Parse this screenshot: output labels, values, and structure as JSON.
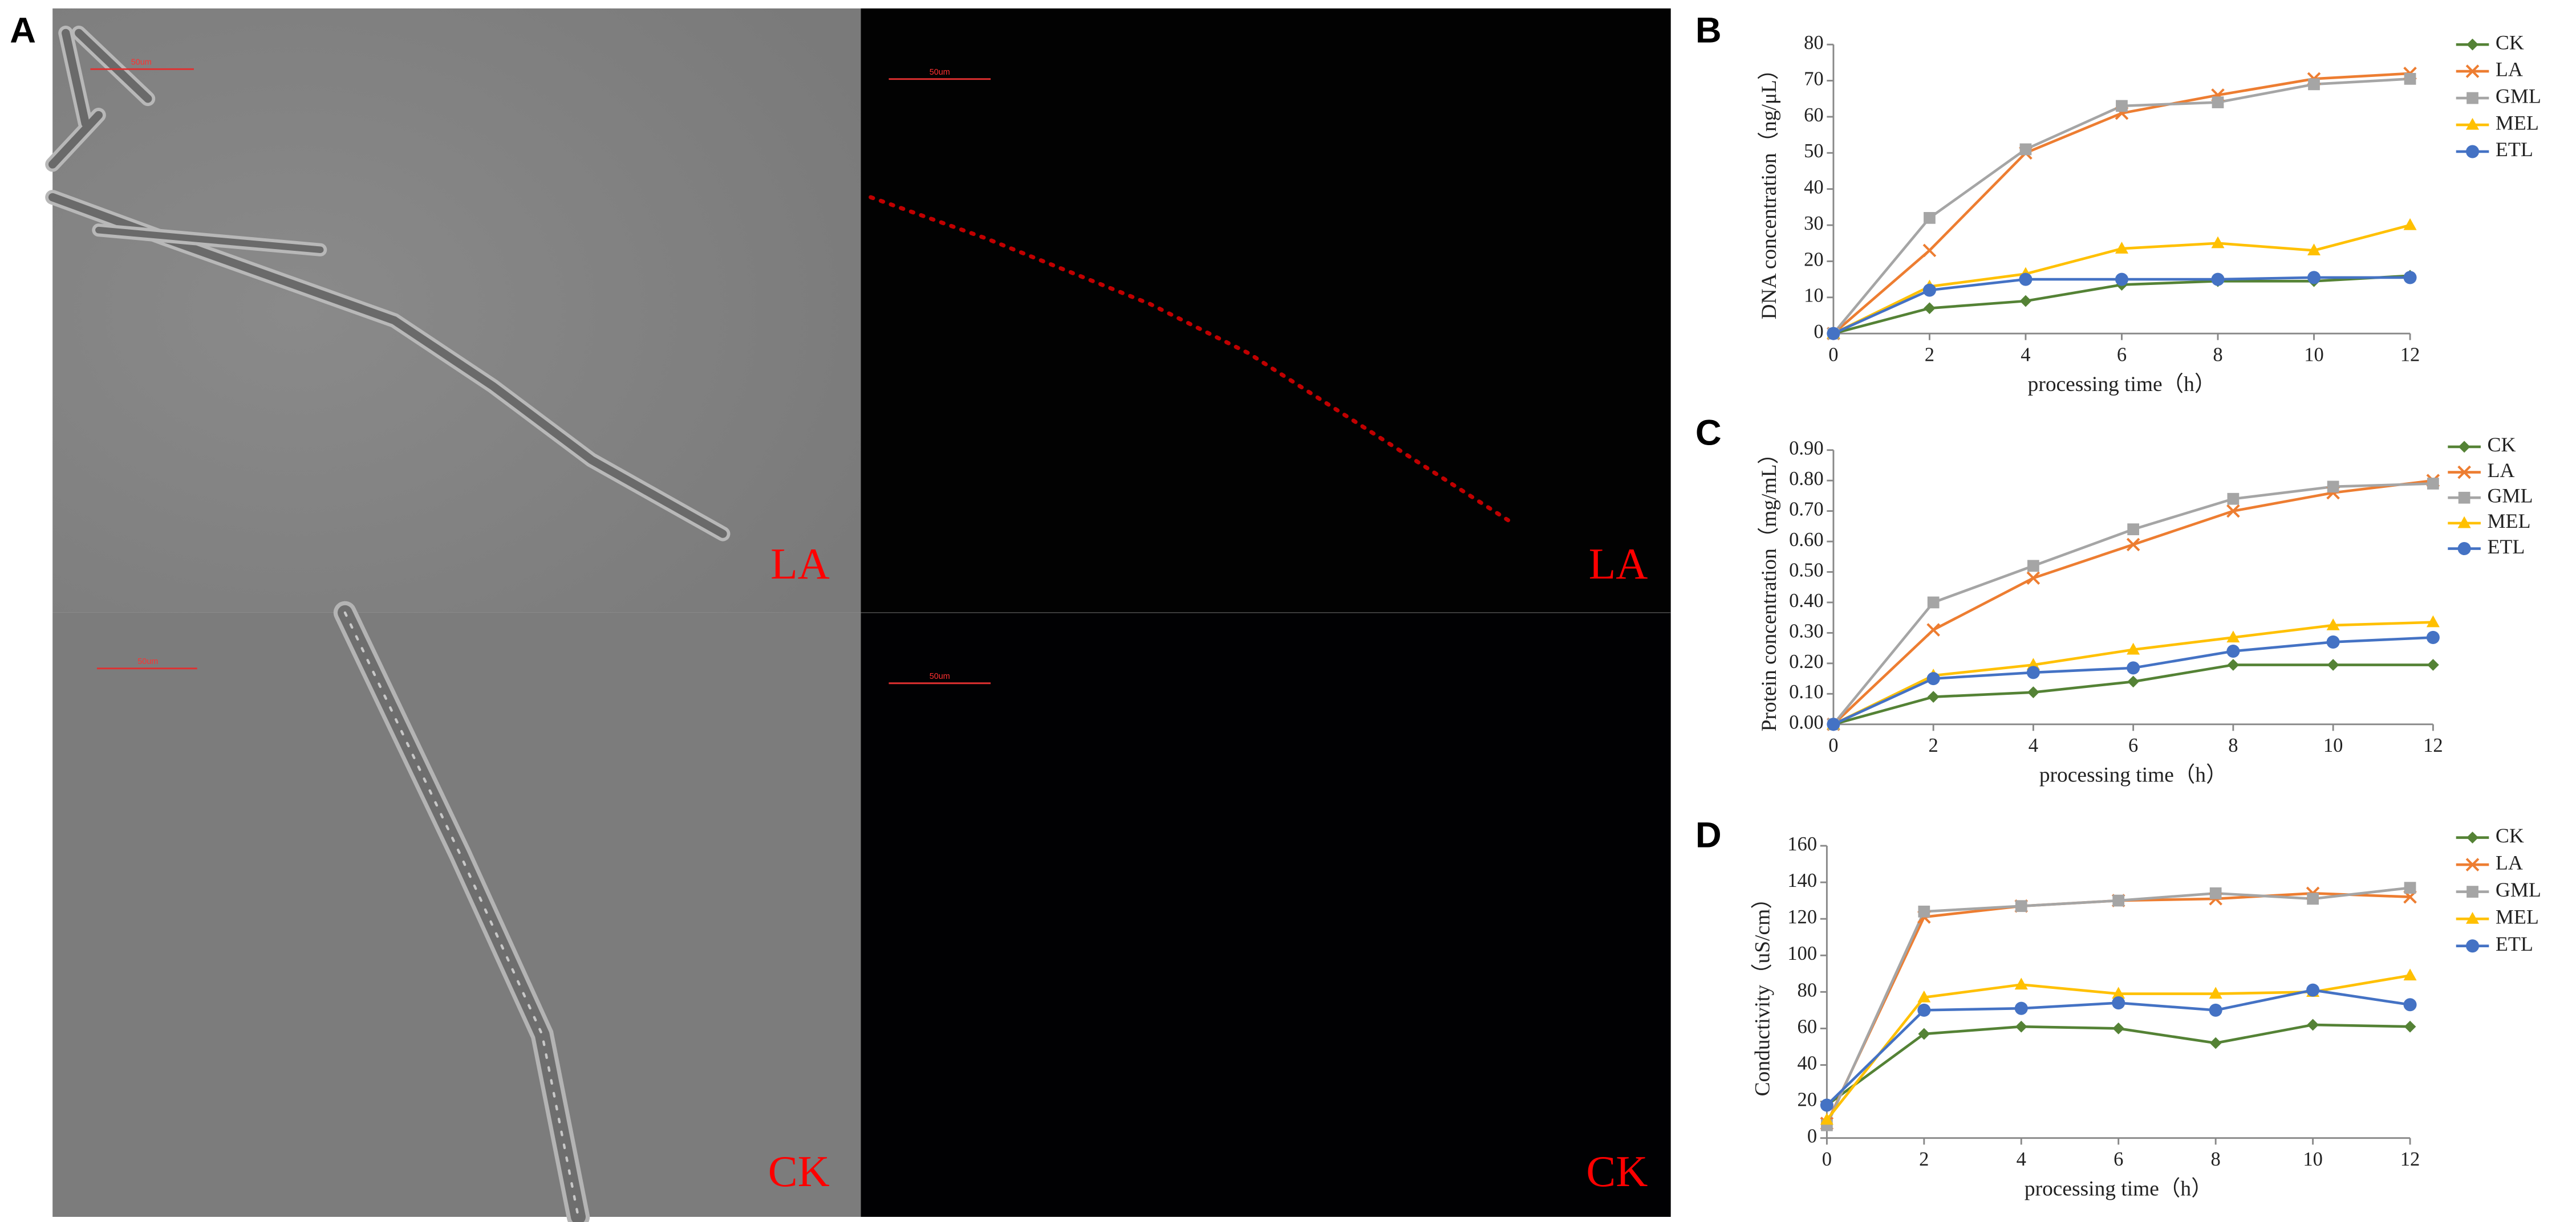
{
  "panel_labels": [
    "A",
    "B",
    "C",
    "D"
  ],
  "images": [
    {
      "label": "LA",
      "scale_label": "50um"
    },
    {
      "label": "LA",
      "scale_label": "50um"
    },
    {
      "label": "CK",
      "scale_label": "50um"
    },
    {
      "label": "CK",
      "scale_label": "50um"
    }
  ],
  "chart_data": [
    {
      "type": "line",
      "x_label": "processing time（h）",
      "y_label": "DNA concentration（ng/μL）",
      "x": [
        0,
        2,
        4,
        6,
        8,
        10,
        12
      ],
      "xlim": [
        0,
        12
      ],
      "xticks": [
        0,
        2,
        4,
        6,
        8,
        10,
        12
      ],
      "ylim": [
        0,
        80
      ],
      "yticks": [
        0,
        10,
        20,
        30,
        40,
        50,
        60,
        70,
        80
      ],
      "grid": false,
      "legend": "right",
      "series": [
        {
          "name": "CK",
          "color": "#548235",
          "marker": "diamond",
          "values": [
            0,
            7,
            9,
            13.5,
            14.5,
            14.5,
            16
          ]
        },
        {
          "name": "LA",
          "color": "#ed7d31",
          "marker": "x",
          "values": [
            0,
            23,
            50,
            61,
            66,
            70.5,
            72
          ]
        },
        {
          "name": "GML",
          "color": "#a5a5a5",
          "marker": "square",
          "values": [
            0,
            32,
            51,
            63,
            64,
            69,
            70.5
          ]
        },
        {
          "name": "MEL",
          "color": "#ffc000",
          "marker": "triangle",
          "values": [
            0,
            13,
            16.5,
            23.5,
            25,
            23,
            30
          ]
        },
        {
          "name": "ETL",
          "color": "#4472c4",
          "marker": "circle",
          "values": [
            0,
            12,
            15,
            15,
            15,
            15.5,
            15.5
          ]
        }
      ]
    },
    {
      "type": "line",
      "x_label": "processing time（h）",
      "y_label": "Protein concentration（mg/mL）",
      "x": [
        0,
        2,
        4,
        6,
        8,
        10,
        12
      ],
      "xlim": [
        0,
        12
      ],
      "xticks": [
        0,
        2,
        4,
        6,
        8,
        10,
        12
      ],
      "ylim": [
        0,
        0.9
      ],
      "yticks": [
        {
          "value": 0,
          "label": "0.00"
        },
        {
          "value": 0.1,
          "label": "0.10"
        },
        {
          "value": 0.2,
          "label": "0.20"
        },
        {
          "value": 0.3,
          "label": "0.30"
        },
        {
          "value": 0.4,
          "label": "0.40"
        },
        {
          "value": 0.5,
          "label": "0.50"
        },
        {
          "value": 0.6,
          "label": "0.60"
        },
        {
          "value": 0.7,
          "label": "0.70"
        },
        {
          "value": 0.8,
          "label": "0.80"
        },
        {
          "value": 0.9,
          "label": "0.90"
        }
      ],
      "grid": false,
      "legend": "right",
      "series": [
        {
          "name": "CK",
          "color": "#548235",
          "marker": "diamond",
          "values": [
            0,
            0.09,
            0.105,
            0.14,
            0.195,
            0.195,
            0.195
          ]
        },
        {
          "name": "LA",
          "color": "#ed7d31",
          "marker": "x",
          "values": [
            0,
            0.31,
            0.48,
            0.59,
            0.7,
            0.76,
            0.8
          ]
        },
        {
          "name": "GML",
          "color": "#a5a5a5",
          "marker": "square",
          "values": [
            0,
            0.4,
            0.52,
            0.64,
            0.74,
            0.78,
            0.79
          ]
        },
        {
          "name": "MEL",
          "color": "#ffc000",
          "marker": "triangle",
          "values": [
            0,
            0.16,
            0.195,
            0.245,
            0.285,
            0.325,
            0.335
          ]
        },
        {
          "name": "ETL",
          "color": "#4472c4",
          "marker": "circle",
          "values": [
            0,
            0.15,
            0.17,
            0.185,
            0.24,
            0.27,
            0.285
          ]
        }
      ]
    },
    {
      "type": "line",
      "x_label": "processing time（h）",
      "y_label": "Conductivity（uS/cm）",
      "x": [
        0,
        2,
        4,
        6,
        8,
        10,
        12
      ],
      "xlim": [
        0,
        12
      ],
      "xticks": [
        0,
        2,
        4,
        6,
        8,
        10,
        12
      ],
      "ylim": [
        0,
        160
      ],
      "yticks": [
        0,
        20,
        40,
        60,
        80,
        100,
        120,
        140,
        160
      ],
      "grid": false,
      "legend": "right",
      "series": [
        {
          "name": "CK",
          "color": "#548235",
          "marker": "diamond",
          "values": [
            18,
            57,
            61,
            60,
            52,
            62,
            61
          ]
        },
        {
          "name": "LA",
          "color": "#ed7d31",
          "marker": "x",
          "values": [
            8,
            121,
            127,
            130,
            131,
            134,
            132
          ]
        },
        {
          "name": "GML",
          "color": "#a5a5a5",
          "marker": "square",
          "values": [
            7,
            124,
            127,
            130,
            134,
            131,
            137
          ]
        },
        {
          "name": "MEL",
          "color": "#ffc000",
          "marker": "triangle",
          "values": [
            10,
            77,
            84,
            79,
            79,
            80,
            89
          ]
        },
        {
          "name": "ETL",
          "color": "#4472c4",
          "marker": "circle",
          "values": [
            18,
            70,
            71,
            74,
            70,
            81,
            73
          ]
        }
      ]
    }
  ]
}
